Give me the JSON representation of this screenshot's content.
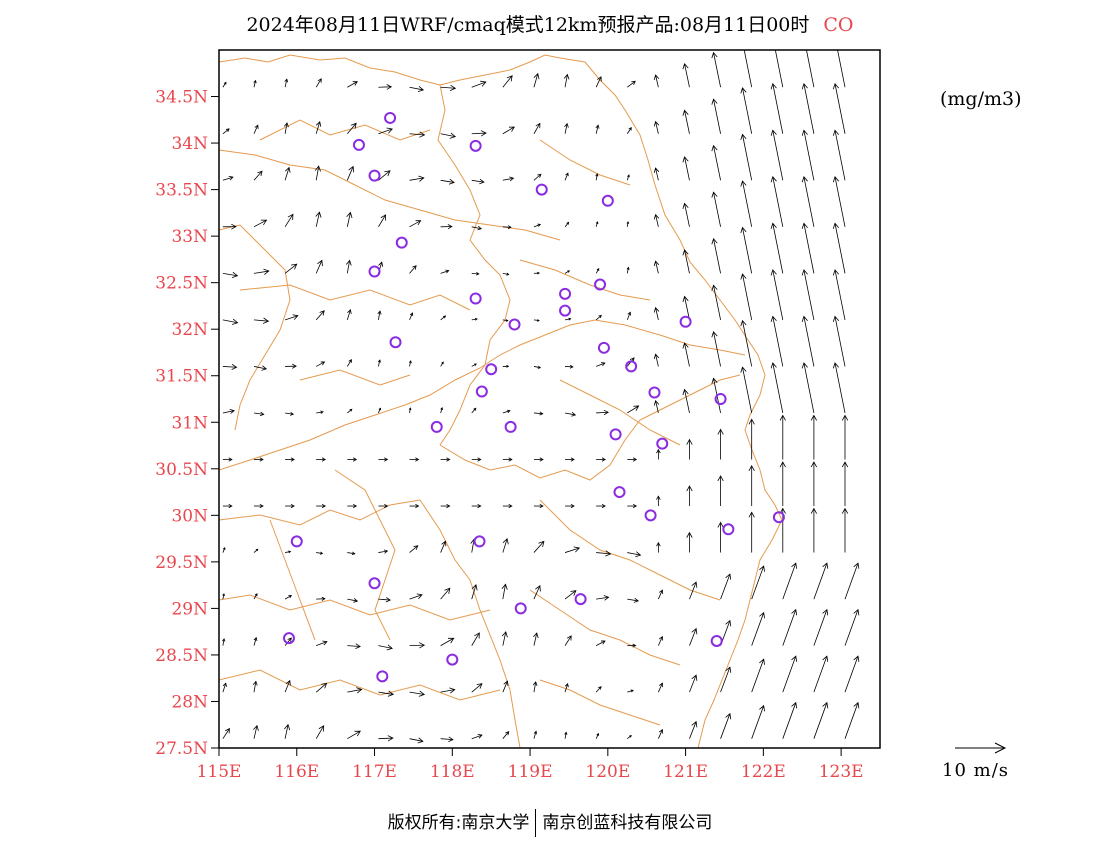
{
  "title": {
    "main": "2024年08月11日WRF/cmaq模式12km预报产品:08月11日00时",
    "species": "CO"
  },
  "units": "(mg/m3)",
  "reference_vector": {
    "label": "10  m/s",
    "speed": 10
  },
  "footer": {
    "left": "版权所有:南京大学",
    "right": "南京创蓝科技有限公司"
  },
  "map": {
    "lon_range": [
      115,
      123.5
    ],
    "lat_range": [
      27.5,
      35.0
    ],
    "lon_ticks": [
      "115E",
      "116E",
      "117E",
      "118E",
      "119E",
      "120E",
      "121E",
      "122E",
      "123E"
    ],
    "lat_ticks": [
      "27.5N",
      "28N",
      "28.5N",
      "29N",
      "29.5N",
      "30N",
      "30.5N",
      "31N",
      "31.5N",
      "32N",
      "32.5N",
      "33N",
      "33.5N",
      "34N",
      "34.5N"
    ],
    "colors": {
      "axis": "#000000",
      "tick_labels": "#e8474d",
      "boundaries": "#e59a4f",
      "stations": "#8a2be2",
      "vectors": "#000000"
    },
    "stations": [
      [
        117.2,
        34.27
      ],
      [
        116.8,
        33.98
      ],
      [
        117.0,
        33.65
      ],
      [
        118.3,
        33.97
      ],
      [
        119.15,
        33.5
      ],
      [
        120.0,
        33.38
      ],
      [
        117.35,
        32.93
      ],
      [
        117.0,
        32.62
      ],
      [
        118.3,
        32.33
      ],
      [
        118.8,
        32.05
      ],
      [
        119.45,
        32.38
      ],
      [
        119.45,
        32.2
      ],
      [
        119.9,
        32.48
      ],
      [
        121.0,
        32.08
      ],
      [
        117.27,
        31.86
      ],
      [
        119.95,
        31.8
      ],
      [
        120.3,
        31.6
      ],
      [
        118.5,
        31.57
      ],
      [
        118.38,
        31.33
      ],
      [
        120.6,
        31.32
      ],
      [
        121.45,
        31.25
      ],
      [
        117.8,
        30.95
      ],
      [
        118.75,
        30.95
      ],
      [
        120.1,
        30.87
      ],
      [
        120.7,
        30.77
      ],
      [
        120.15,
        30.25
      ],
      [
        120.55,
        30.0
      ],
      [
        121.55,
        29.85
      ],
      [
        122.2,
        29.98
      ],
      [
        116.0,
        29.72
      ],
      [
        118.35,
        29.72
      ],
      [
        117.0,
        29.27
      ],
      [
        118.88,
        29.0
      ],
      [
        119.65,
        29.1
      ],
      [
        115.9,
        28.68
      ],
      [
        118.0,
        28.45
      ],
      [
        117.1,
        28.27
      ],
      [
        121.4,
        28.65
      ]
    ]
  }
}
